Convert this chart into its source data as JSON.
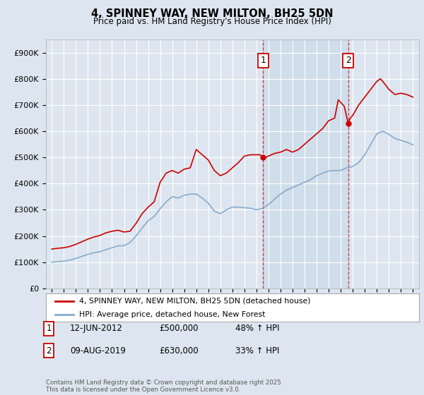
{
  "title": "4, SPINNEY WAY, NEW MILTON, BH25 5DN",
  "subtitle": "Price paid vs. HM Land Registry's House Price Index (HPI)",
  "background_color": "#dde6f0",
  "plot_bg_color": "#dde6f0",
  "yticks": [
    0,
    100000,
    200000,
    300000,
    400000,
    500000,
    600000,
    700000,
    800000,
    900000
  ],
  "ytick_labels": [
    "£0",
    "£100K",
    "£200K",
    "£300K",
    "£400K",
    "£500K",
    "£600K",
    "£700K",
    "£800K",
    "£900K"
  ],
  "xlim_start": 1994.5,
  "xlim_end": 2025.5,
  "ylim": [
    0,
    950000
  ],
  "red_line_color": "#cc0000",
  "blue_line_color": "#88aacc",
  "marker1_year": 2012.55,
  "marker2_year": 2019.62,
  "marker1_price": 500000,
  "marker2_price": 630000,
  "annotation1": "1",
  "annotation2": "2",
  "note1_date": "12-JUN-2012",
  "note1_price": "£500,000",
  "note1_hpi": "48% ↑ HPI",
  "note2_date": "09-AUG-2019",
  "note2_price": "£630,000",
  "note2_hpi": "33% ↑ HPI",
  "legend1": "4, SPINNEY WAY, NEW MILTON, BH25 5DN (detached house)",
  "legend2": "HPI: Average price, detached house, New Forest",
  "footer": "Contains HM Land Registry data © Crown copyright and database right 2025.\nThis data is licensed under the Open Government Licence v3.0.",
  "hpi_red": [
    [
      1995.0,
      150000
    ],
    [
      1995.5,
      153000
    ],
    [
      1996.0,
      155000
    ],
    [
      1996.5,
      160000
    ],
    [
      1997.0,
      168000
    ],
    [
      1997.5,
      178000
    ],
    [
      1998.0,
      188000
    ],
    [
      1998.5,
      196000
    ],
    [
      1999.0,
      202000
    ],
    [
      1999.5,
      212000
    ],
    [
      2000.0,
      218000
    ],
    [
      2000.5,
      222000
    ],
    [
      2001.0,
      215000
    ],
    [
      2001.5,
      218000
    ],
    [
      2002.0,
      248000
    ],
    [
      2002.5,
      285000
    ],
    [
      2003.0,
      310000
    ],
    [
      2003.5,
      330000
    ],
    [
      2004.0,
      405000
    ],
    [
      2004.5,
      440000
    ],
    [
      2005.0,
      450000
    ],
    [
      2005.5,
      440000
    ],
    [
      2006.0,
      455000
    ],
    [
      2006.5,
      460000
    ],
    [
      2007.0,
      530000
    ],
    [
      2007.5,
      510000
    ],
    [
      2008.0,
      490000
    ],
    [
      2008.5,
      450000
    ],
    [
      2009.0,
      430000
    ],
    [
      2009.5,
      440000
    ],
    [
      2010.0,
      460000
    ],
    [
      2010.5,
      480000
    ],
    [
      2011.0,
      505000
    ],
    [
      2011.5,
      510000
    ],
    [
      2012.0,
      510000
    ],
    [
      2012.3,
      510000
    ],
    [
      2012.55,
      500000
    ],
    [
      2012.8,
      500000
    ],
    [
      2013.0,
      505000
    ],
    [
      2013.5,
      515000
    ],
    [
      2014.0,
      520000
    ],
    [
      2014.5,
      530000
    ],
    [
      2015.0,
      520000
    ],
    [
      2015.5,
      530000
    ],
    [
      2016.0,
      550000
    ],
    [
      2016.5,
      570000
    ],
    [
      2017.0,
      590000
    ],
    [
      2017.5,
      610000
    ],
    [
      2018.0,
      640000
    ],
    [
      2018.5,
      650000
    ],
    [
      2018.8,
      720000
    ],
    [
      2019.0,
      710000
    ],
    [
      2019.3,
      695000
    ],
    [
      2019.62,
      630000
    ],
    [
      2019.8,
      650000
    ],
    [
      2020.0,
      660000
    ],
    [
      2020.5,
      700000
    ],
    [
      2021.0,
      730000
    ],
    [
      2021.5,
      760000
    ],
    [
      2022.0,
      790000
    ],
    [
      2022.3,
      800000
    ],
    [
      2022.5,
      790000
    ],
    [
      2023.0,
      760000
    ],
    [
      2023.5,
      740000
    ],
    [
      2024.0,
      745000
    ],
    [
      2024.5,
      740000
    ],
    [
      2025.0,
      730000
    ]
  ],
  "hpi_blue": [
    [
      1995.0,
      100000
    ],
    [
      1995.5,
      102000
    ],
    [
      1996.0,
      104000
    ],
    [
      1996.5,
      108000
    ],
    [
      1997.0,
      114000
    ],
    [
      1997.5,
      122000
    ],
    [
      1998.0,
      130000
    ],
    [
      1998.5,
      136000
    ],
    [
      1999.0,
      140000
    ],
    [
      1999.5,
      148000
    ],
    [
      2000.0,
      155000
    ],
    [
      2000.5,
      162000
    ],
    [
      2001.0,
      163000
    ],
    [
      2001.5,
      175000
    ],
    [
      2002.0,
      200000
    ],
    [
      2002.5,
      230000
    ],
    [
      2003.0,
      258000
    ],
    [
      2003.5,
      274000
    ],
    [
      2004.0,
      304000
    ],
    [
      2004.5,
      330000
    ],
    [
      2005.0,
      350000
    ],
    [
      2005.5,
      345000
    ],
    [
      2006.0,
      355000
    ],
    [
      2006.5,
      360000
    ],
    [
      2007.0,
      360000
    ],
    [
      2007.5,
      345000
    ],
    [
      2008.0,
      325000
    ],
    [
      2008.5,
      295000
    ],
    [
      2009.0,
      285000
    ],
    [
      2009.5,
      300000
    ],
    [
      2010.0,
      310000
    ],
    [
      2010.5,
      310000
    ],
    [
      2011.0,
      308000
    ],
    [
      2011.5,
      306000
    ],
    [
      2012.0,
      300000
    ],
    [
      2012.5,
      305000
    ],
    [
      2013.0,
      320000
    ],
    [
      2013.5,
      340000
    ],
    [
      2014.0,
      360000
    ],
    [
      2014.5,
      375000
    ],
    [
      2015.0,
      385000
    ],
    [
      2015.5,
      395000
    ],
    [
      2016.0,
      405000
    ],
    [
      2016.5,
      415000
    ],
    [
      2017.0,
      430000
    ],
    [
      2017.5,
      440000
    ],
    [
      2018.0,
      448000
    ],
    [
      2018.5,
      450000
    ],
    [
      2019.0,
      450000
    ],
    [
      2019.5,
      460000
    ],
    [
      2020.0,
      465000
    ],
    [
      2020.5,
      480000
    ],
    [
      2021.0,
      510000
    ],
    [
      2021.5,
      550000
    ],
    [
      2022.0,
      590000
    ],
    [
      2022.5,
      600000
    ],
    [
      2023.0,
      588000
    ],
    [
      2023.5,
      572000
    ],
    [
      2024.0,
      565000
    ],
    [
      2024.5,
      558000
    ],
    [
      2025.0,
      548000
    ]
  ]
}
